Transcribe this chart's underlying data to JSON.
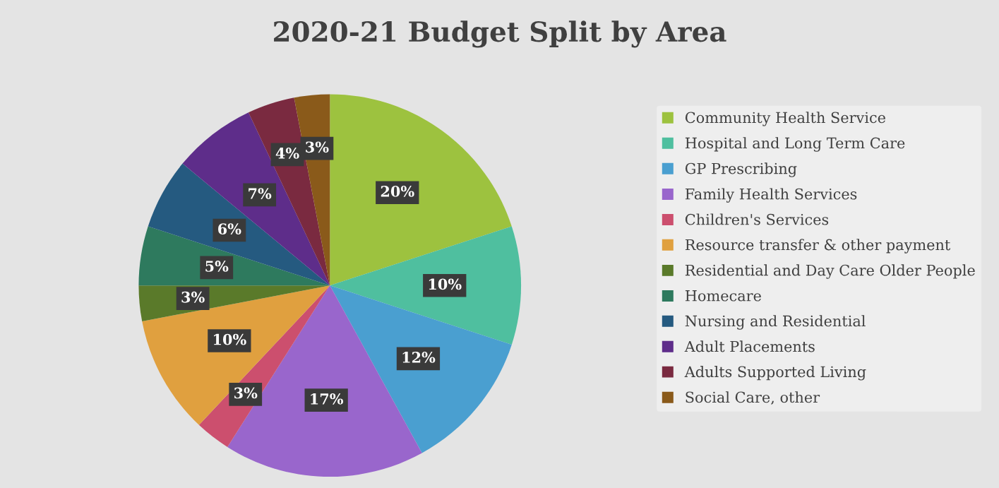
{
  "chart_data": {
    "type": "pie",
    "title": "2020-21 Budget Split by Area",
    "categories": [
      "Community Health Service",
      "Hospital and Long Term Care",
      "GP Prescribing",
      "Family Health Services",
      "Children's Services",
      "Resource transfer & other payment",
      "Residential and Day Care Older People",
      "Homecare",
      "Nursing and Residential",
      "Adult Placements",
      "Adults Supported Living",
      "Social Care, other"
    ],
    "values": [
      20,
      10,
      12,
      17,
      3,
      10,
      3,
      5,
      6,
      7,
      4,
      3
    ],
    "colors": [
      "#9dc23f",
      "#4fbf9f",
      "#4a9fd0",
      "#9966cc",
      "#cc4f6e",
      "#e0a03f",
      "#5a7a2a",
      "#2e7a5e",
      "#255a80",
      "#5e2d8a",
      "#7a2a40",
      "#8a5a1a"
    ],
    "value_labels": [
      "20%",
      "10%",
      "12%",
      "17%",
      "3%",
      "10%",
      "3%",
      "5%",
      "6%",
      "7%",
      "4%",
      "3%"
    ],
    "legend": "right"
  }
}
